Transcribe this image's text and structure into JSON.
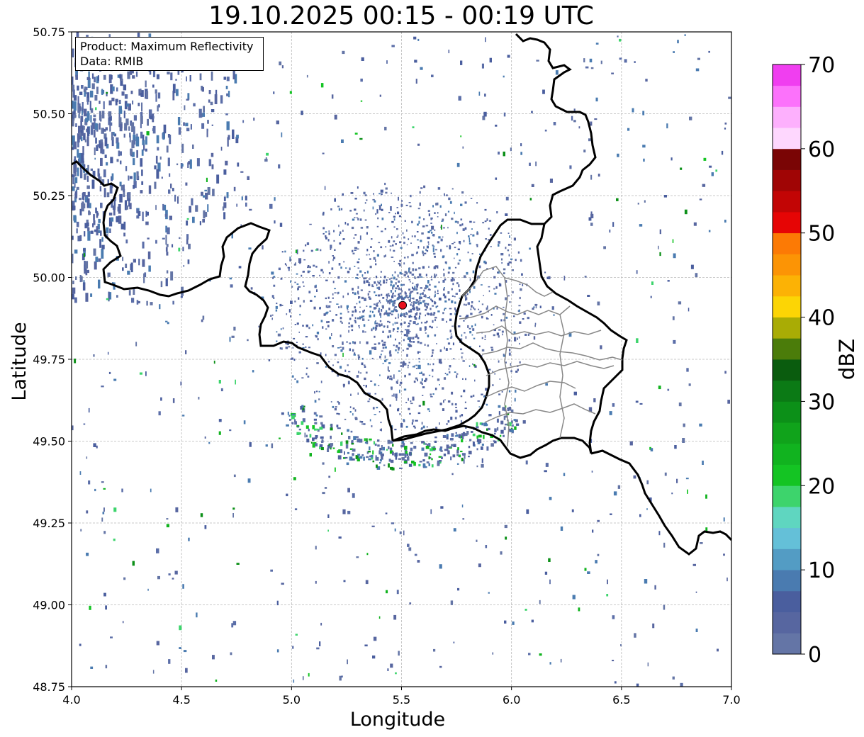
{
  "title": "19.10.2025 00:15 - 00:19 UTC",
  "info_box": {
    "product_line": "Product: Maximum Reflectivity",
    "data_line": "Data: RMIB"
  },
  "x_axis": {
    "label": "Longitude",
    "range": [
      4.0,
      7.0
    ],
    "ticks": [
      "4.0",
      "4.5",
      "5.0",
      "5.5",
      "6.0",
      "6.5",
      "7.0"
    ],
    "tick_values": [
      4.0,
      4.5,
      5.0,
      5.5,
      6.0,
      6.5,
      7.0
    ]
  },
  "y_axis": {
    "label": "Latitude",
    "range": [
      48.75,
      50.75
    ],
    "ticks": [
      "48.75",
      "49.00",
      "49.25",
      "49.50",
      "49.75",
      "50.00",
      "50.25",
      "50.50",
      "50.75"
    ],
    "tick_values": [
      48.75,
      49.0,
      49.25,
      49.5,
      49.75,
      50.0,
      50.25,
      50.5,
      50.75
    ]
  },
  "grid": true,
  "radar_site": {
    "lon": 5.505,
    "lat": 49.915,
    "color": "#e8121c"
  },
  "colorbar": {
    "label": "dBZ",
    "range": [
      0,
      70
    ],
    "ticks": [
      "0",
      "10",
      "20",
      "30",
      "40",
      "50",
      "60",
      "70"
    ],
    "tick_values": [
      0,
      10,
      20,
      30,
      40,
      50,
      60,
      70
    ],
    "colors": [
      "#6475a6",
      "#5766a0",
      "#4a5e9e",
      "#4a7bb0",
      "#539cc4",
      "#64c0d8",
      "#5fd6c0",
      "#3dd46c",
      "#14c423",
      "#11b31f",
      "#10a31b",
      "#0c9018",
      "#0b7a15",
      "#0a5c0e",
      "#4b7c0a",
      "#a9ac05",
      "#fcd505",
      "#fcb205",
      "#fc9405",
      "#fc7a05",
      "#e60505",
      "#c20505",
      "#a00505",
      "#7a0505",
      "#fed7fe",
      "#fdb0fd",
      "#fc72fb",
      "#f03ef0"
    ]
  },
  "borders": {
    "country_color": "#000000",
    "province_color": "#888888"
  }
}
